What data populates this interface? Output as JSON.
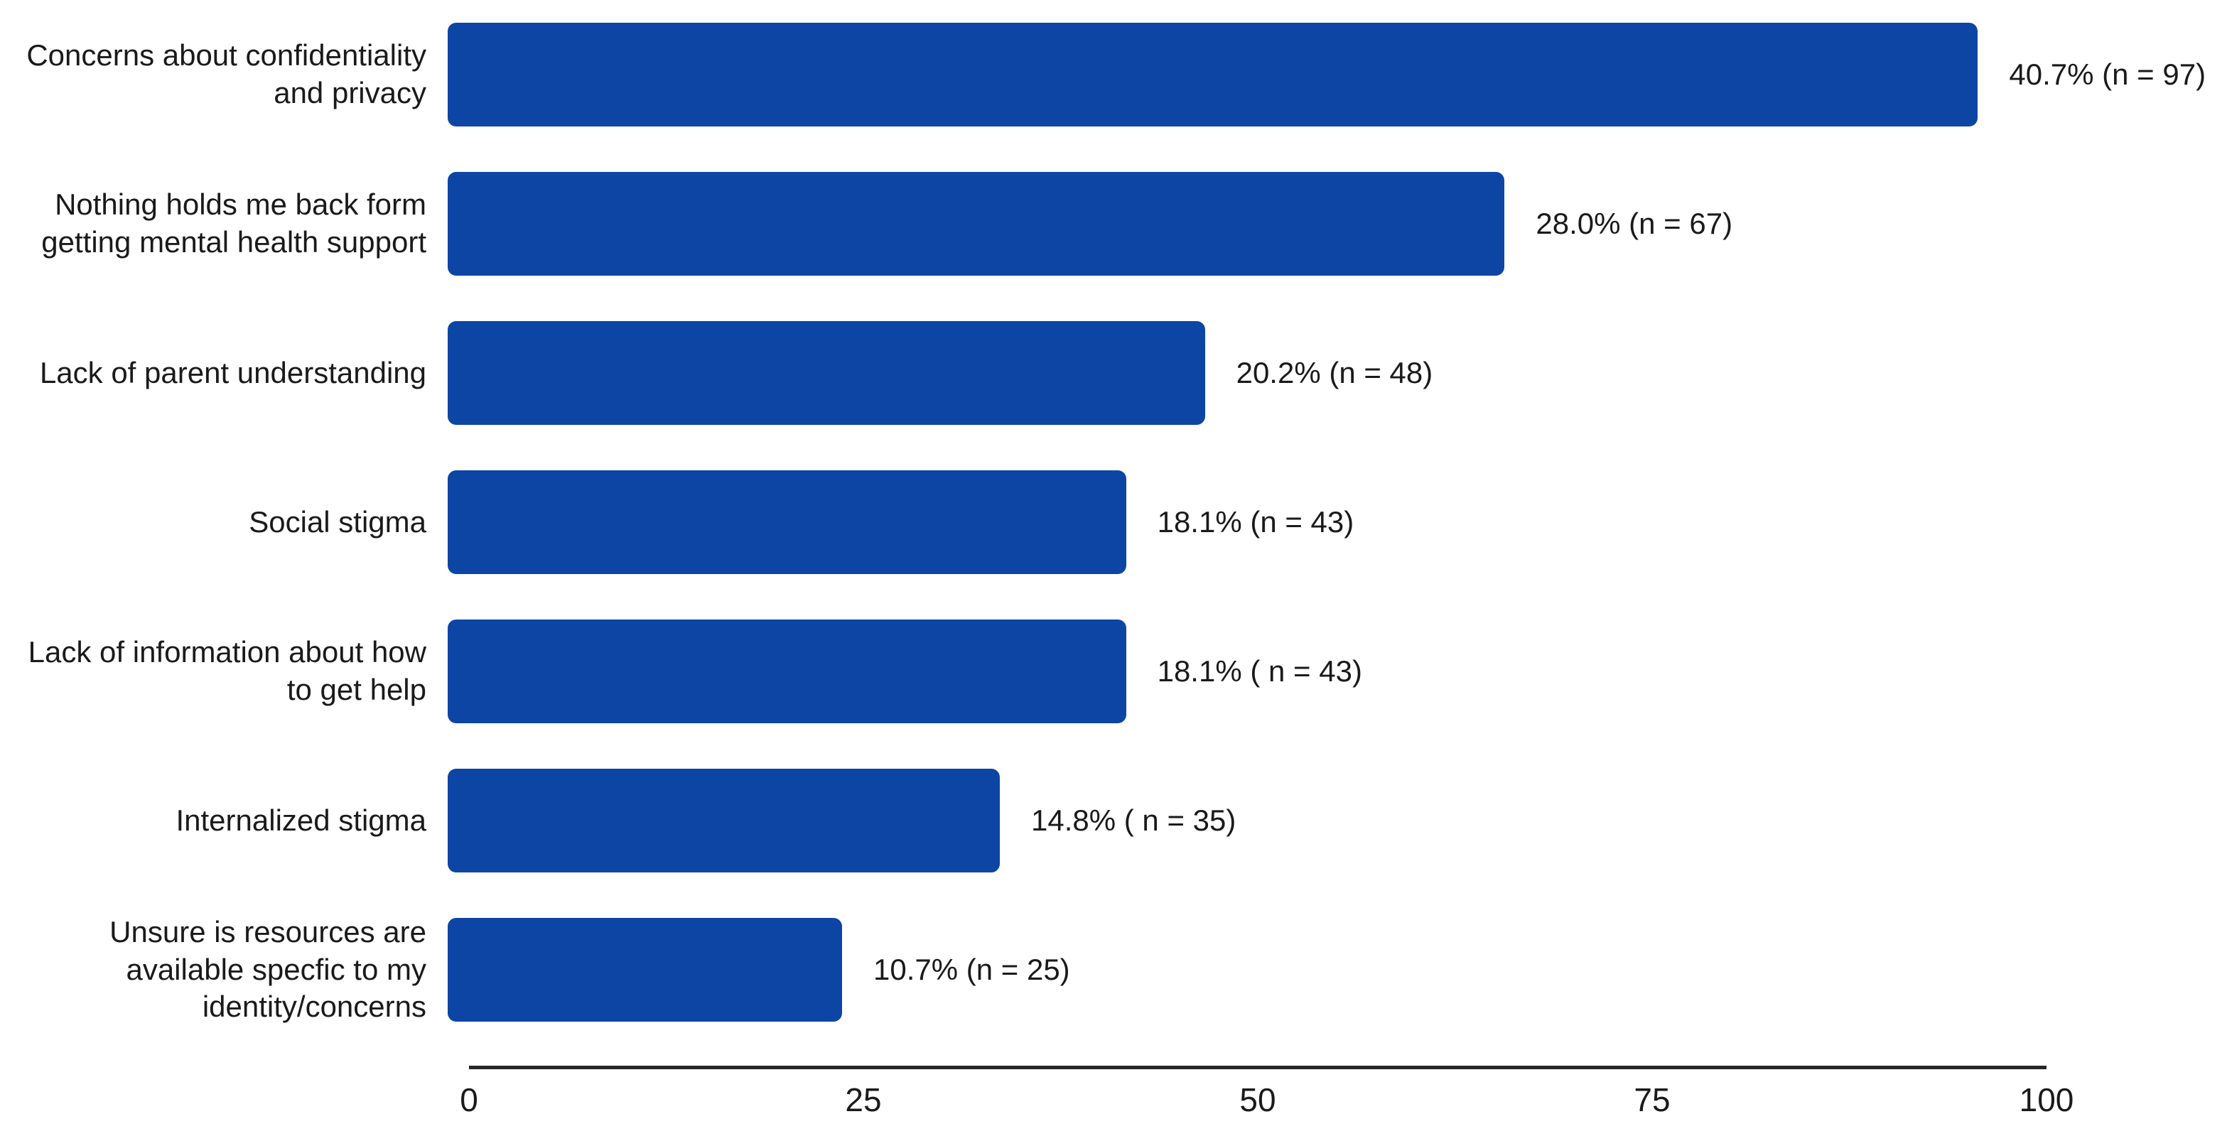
{
  "chart_data": {
    "type": "bar",
    "orientation": "horizontal",
    "title": "",
    "xlabel": "",
    "ylabel": "",
    "xlim": [
      0,
      100
    ],
    "x_ticks": [
      "0",
      "25",
      "50",
      "75",
      "100"
    ],
    "x_tick_values": [
      0,
      25,
      50,
      75,
      100
    ],
    "grid": false,
    "legend_position": "none",
    "bar_color": "#0c45a4",
    "axis_color": "#262626",
    "text_color": "#1a1a1a",
    "bars": [
      {
        "category": "Concerns about confidentiality\nand privacy",
        "n": 97,
        "pct": 40.7,
        "label": "40.7% (n = 97)"
      },
      {
        "category": "Nothing holds me back form\ngetting mental health support",
        "n": 67,
        "pct": 28.0,
        "label": "28.0% (n = 67)"
      },
      {
        "category": "Lack of parent understanding",
        "n": 48,
        "pct": 20.2,
        "label": "20.2% (n = 48)"
      },
      {
        "category": "Social stigma",
        "n": 43,
        "pct": 18.1,
        "label": "18.1% (n = 43)"
      },
      {
        "category": "Lack of information about how\nto get help",
        "n": 43,
        "pct": 18.1,
        "label": "18.1% ( n = 43)"
      },
      {
        "category": "Internalized stigma",
        "n": 35,
        "pct": 14.8,
        "label": "14.8% ( n = 35)"
      },
      {
        "category": "Unsure is resources are\navailable specfic to my\nidentity/concerns",
        "n": 25,
        "pct": 10.7,
        "label": "10.7% (n = 25)"
      }
    ]
  }
}
